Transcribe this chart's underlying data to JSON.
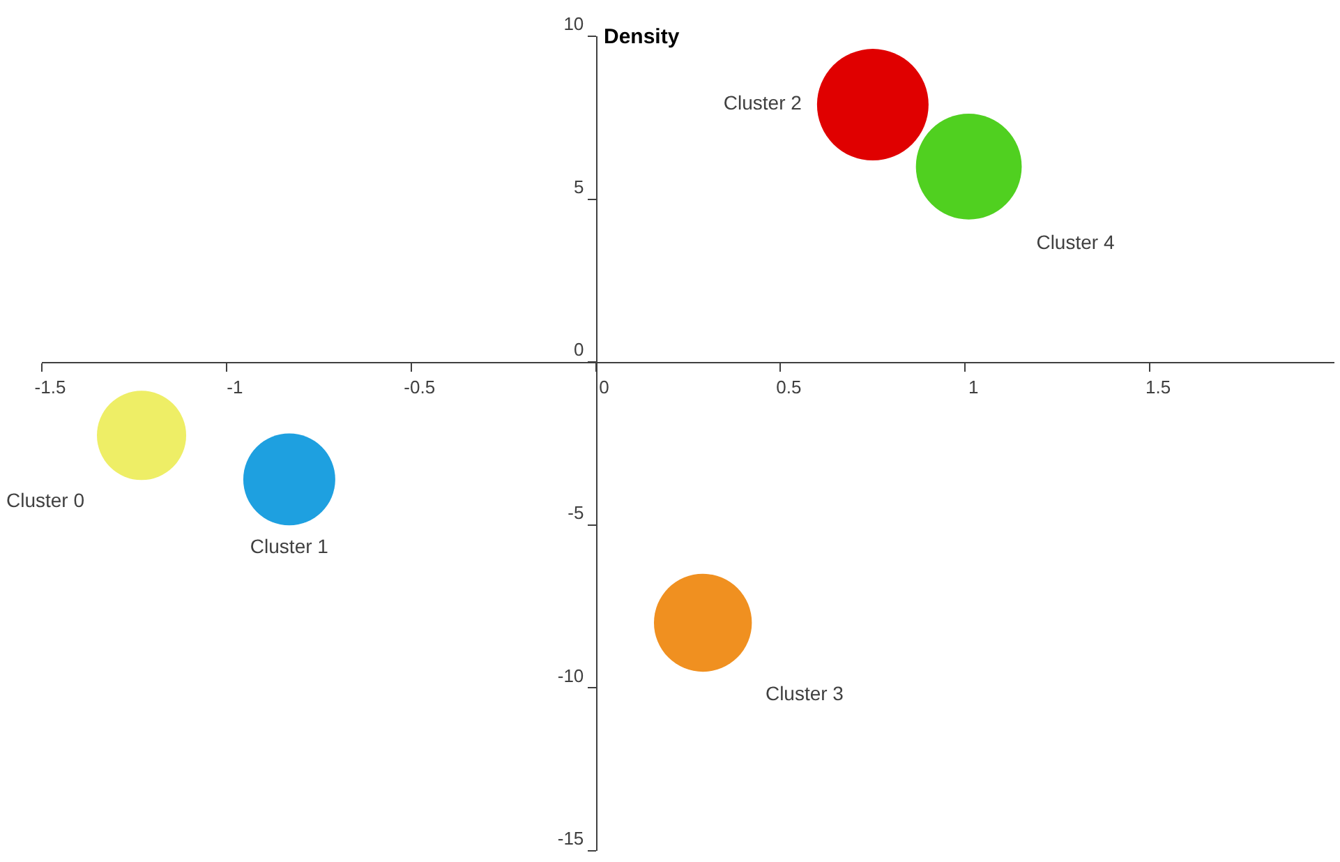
{
  "chart_data": {
    "type": "bubble",
    "ylabel": "Density",
    "series": [
      {
        "name": "Cluster 0",
        "color": "#eeee66",
        "x": [
          -1.23
        ],
        "values": [
          -2.25
        ],
        "sizes": [
          0.64
        ]
      },
      {
        "name": "Cluster 1",
        "color": "#1ea0e0",
        "x": [
          -0.83
        ],
        "values": [
          -3.6
        ],
        "sizes": [
          0.68
        ]
      },
      {
        "name": "Cluster 2",
        "color": "#e00000",
        "x": [
          0.75
        ],
        "values": [
          7.9
        ],
        "sizes": [
          1
        ]
      },
      {
        "name": "Cluster 3",
        "color": "#f09020",
        "x": [
          0.29
        ],
        "values": [
          -8.0
        ],
        "sizes": [
          0.77
        ]
      },
      {
        "name": "Cluster 4",
        "color": "#50d020",
        "x": [
          1.01
        ],
        "values": [
          6.0
        ],
        "sizes": [
          0.9
        ]
      }
    ],
    "xlim": [
      -1.5,
      2.0
    ],
    "xticks": [
      -1.5,
      -1,
      -0.5,
      0,
      0.5,
      1,
      1.5
    ],
    "ylim": [
      -15,
      10
    ],
    "yticks": [
      -15,
      -10,
      -5,
      0,
      5,
      10
    ]
  }
}
